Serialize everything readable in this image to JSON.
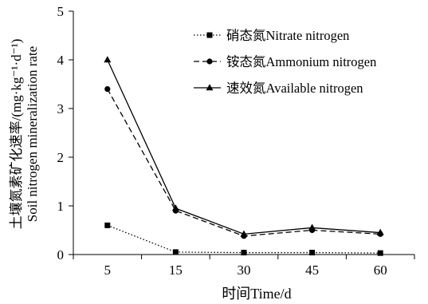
{
  "chart_data": {
    "type": "line",
    "x": [
      5,
      15,
      30,
      45,
      60
    ],
    "categories": [
      "5",
      "15",
      "30",
      "45",
      "60"
    ],
    "xlabel": "时间Time/d",
    "ylabel": [
      "土壤氮素矿化速率/(mg·kg⁻¹·d⁻¹)",
      "Soil nitrogen mineralization rate"
    ],
    "ylim": [
      0,
      5
    ],
    "yticks": [
      0,
      1,
      2,
      3,
      4,
      5
    ],
    "grid": false,
    "legend_position": "top-right",
    "series": [
      {
        "name": "硝态氮Nitrate nitrogen",
        "values": [
          0.6,
          0.05,
          0.04,
          0.04,
          0.03
        ],
        "line": "dotted",
        "marker": "square",
        "color": "#000000"
      },
      {
        "name": "铵态氮Ammonium nitrogen",
        "values": [
          3.4,
          0.9,
          0.38,
          0.5,
          0.42
        ],
        "line": "dashed",
        "marker": "circle",
        "color": "#000000"
      },
      {
        "name": "速效氮Available nitrogen",
        "values": [
          4.0,
          0.95,
          0.42,
          0.55,
          0.45
        ],
        "line": "solid",
        "marker": "triangle",
        "color": "#000000"
      }
    ]
  }
}
